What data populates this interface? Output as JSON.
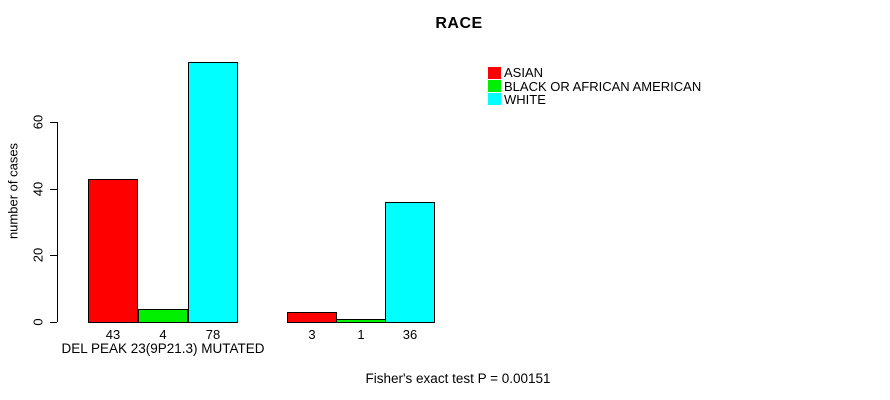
{
  "title": "RACE",
  "y_axis": {
    "label": "number of cases",
    "tick_labels": [
      "0",
      "20",
      "40",
      "60"
    ]
  },
  "legend": {
    "items": [
      {
        "label": "ASIAN",
        "color": "#FF0000"
      },
      {
        "label": "BLACK OR AFRICAN AMERICAN",
        "color": "#00F000"
      },
      {
        "label": "WHITE",
        "color": "#00FFFF"
      }
    ]
  },
  "footer": {
    "stat_text": "Fisher's exact test P = 0.00151"
  },
  "chart_data": {
    "type": "bar",
    "title": "RACE",
    "xlabel": "",
    "ylabel": "number of cases",
    "ylim": [
      0,
      80
    ],
    "yticks": [
      0,
      20,
      40,
      60
    ],
    "grid": false,
    "legend_position": "top-right",
    "series_names": [
      "ASIAN",
      "BLACK OR AFRICAN AMERICAN",
      "WHITE"
    ],
    "colors": [
      "#FF0000",
      "#00F000",
      "#00FFFF"
    ],
    "groups": [
      {
        "label": "DEL PEAK 23(9P21.3) MUTATED",
        "values": [
          43,
          4,
          78
        ]
      },
      {
        "label": "",
        "values": [
          3,
          1,
          36
        ]
      }
    ],
    "bar_value_labels": [
      "43",
      "4",
      "78",
      "3",
      "1",
      "36"
    ],
    "annotation": "Fisher's exact test P = 0.00151"
  }
}
